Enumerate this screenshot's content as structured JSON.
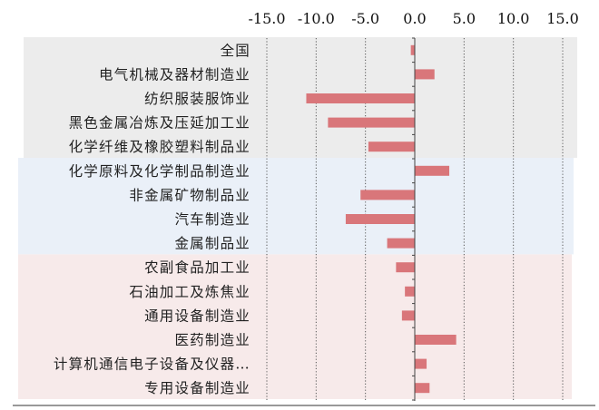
{
  "chart_data": {
    "type": "bar",
    "orientation": "horizontal",
    "x_tick_labels": [
      "-15.0",
      "-10.0",
      "-5.0",
      "0.0",
      "5.0",
      "10.0",
      "15.0"
    ],
    "xlim": [
      -15.0,
      15.0
    ],
    "xaxis_position": "top",
    "grid": "vertical dotted",
    "categories": [
      "全国",
      "电气机械及器材制造业",
      "纺织服装服饰业",
      "黑色金属冶炼及压延加工业",
      "化学纤维及橡胶塑料制品业",
      "化学原料及化学制品制造业",
      "非金属矿物制品业",
      "汽车制造业",
      "金属制品业",
      "农副食品加工业",
      "石油加工及炼焦业",
      "通用设备制造业",
      "医药制造业",
      "计算机通信电子设备及仪器…",
      "专用设备制造业"
    ],
    "values": [
      -0.4,
      2.0,
      -11.0,
      -8.8,
      -4.7,
      3.5,
      -5.5,
      -7.0,
      -2.8,
      -1.9,
      -1.0,
      -1.3,
      4.2,
      1.2,
      1.5
    ],
    "bar_color": "#d9767a",
    "groups": [
      {
        "rows": [
          0,
          4
        ],
        "color": "#ececec"
      },
      {
        "rows": [
          5,
          8
        ],
        "color": "#eaf0f8"
      },
      {
        "rows": [
          9,
          14
        ],
        "color": "#f7eaea"
      }
    ]
  }
}
